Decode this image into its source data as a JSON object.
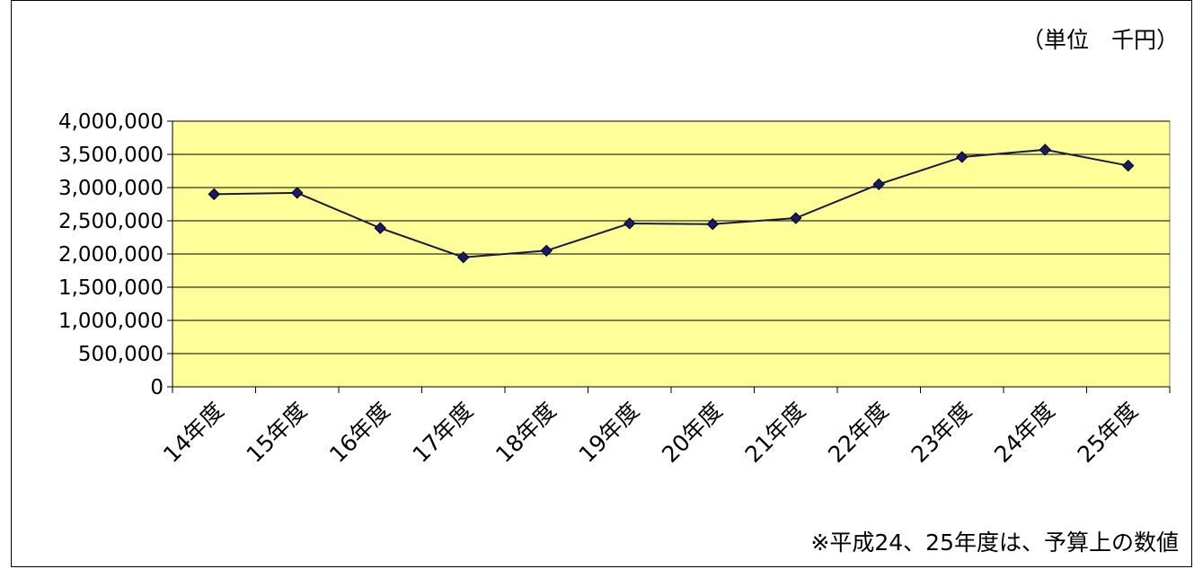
{
  "unit_label": "（単位　千円）",
  "note": "※平成24、25年度は、予算上の数値",
  "colors": {
    "plot_background": "#FFFF99",
    "line": "#1A1A40",
    "marker": "#191970"
  },
  "chart_data": {
    "type": "line",
    "title": "",
    "xlabel": "",
    "ylabel": "",
    "categories": [
      "14年度",
      "15年度",
      "16年度",
      "17年度",
      "18年度",
      "19年度",
      "20年度",
      "21年度",
      "22年度",
      "23年度",
      "24年度",
      "25年度"
    ],
    "series": [
      {
        "values": [
          2900000,
          2920000,
          2390000,
          1950000,
          2050000,
          2460000,
          2450000,
          2540000,
          3050000,
          3460000,
          3570000,
          3330000
        ]
      }
    ],
    "ylim": [
      0,
      4000000
    ],
    "yticks": [
      "0",
      "500,000",
      "1,000,000",
      "1,500,000",
      "2,000,000",
      "2,500,000",
      "3,000,000",
      "3,500,000",
      "4,000,000"
    ],
    "grid": true,
    "legend": "none",
    "marker": "diamond"
  }
}
